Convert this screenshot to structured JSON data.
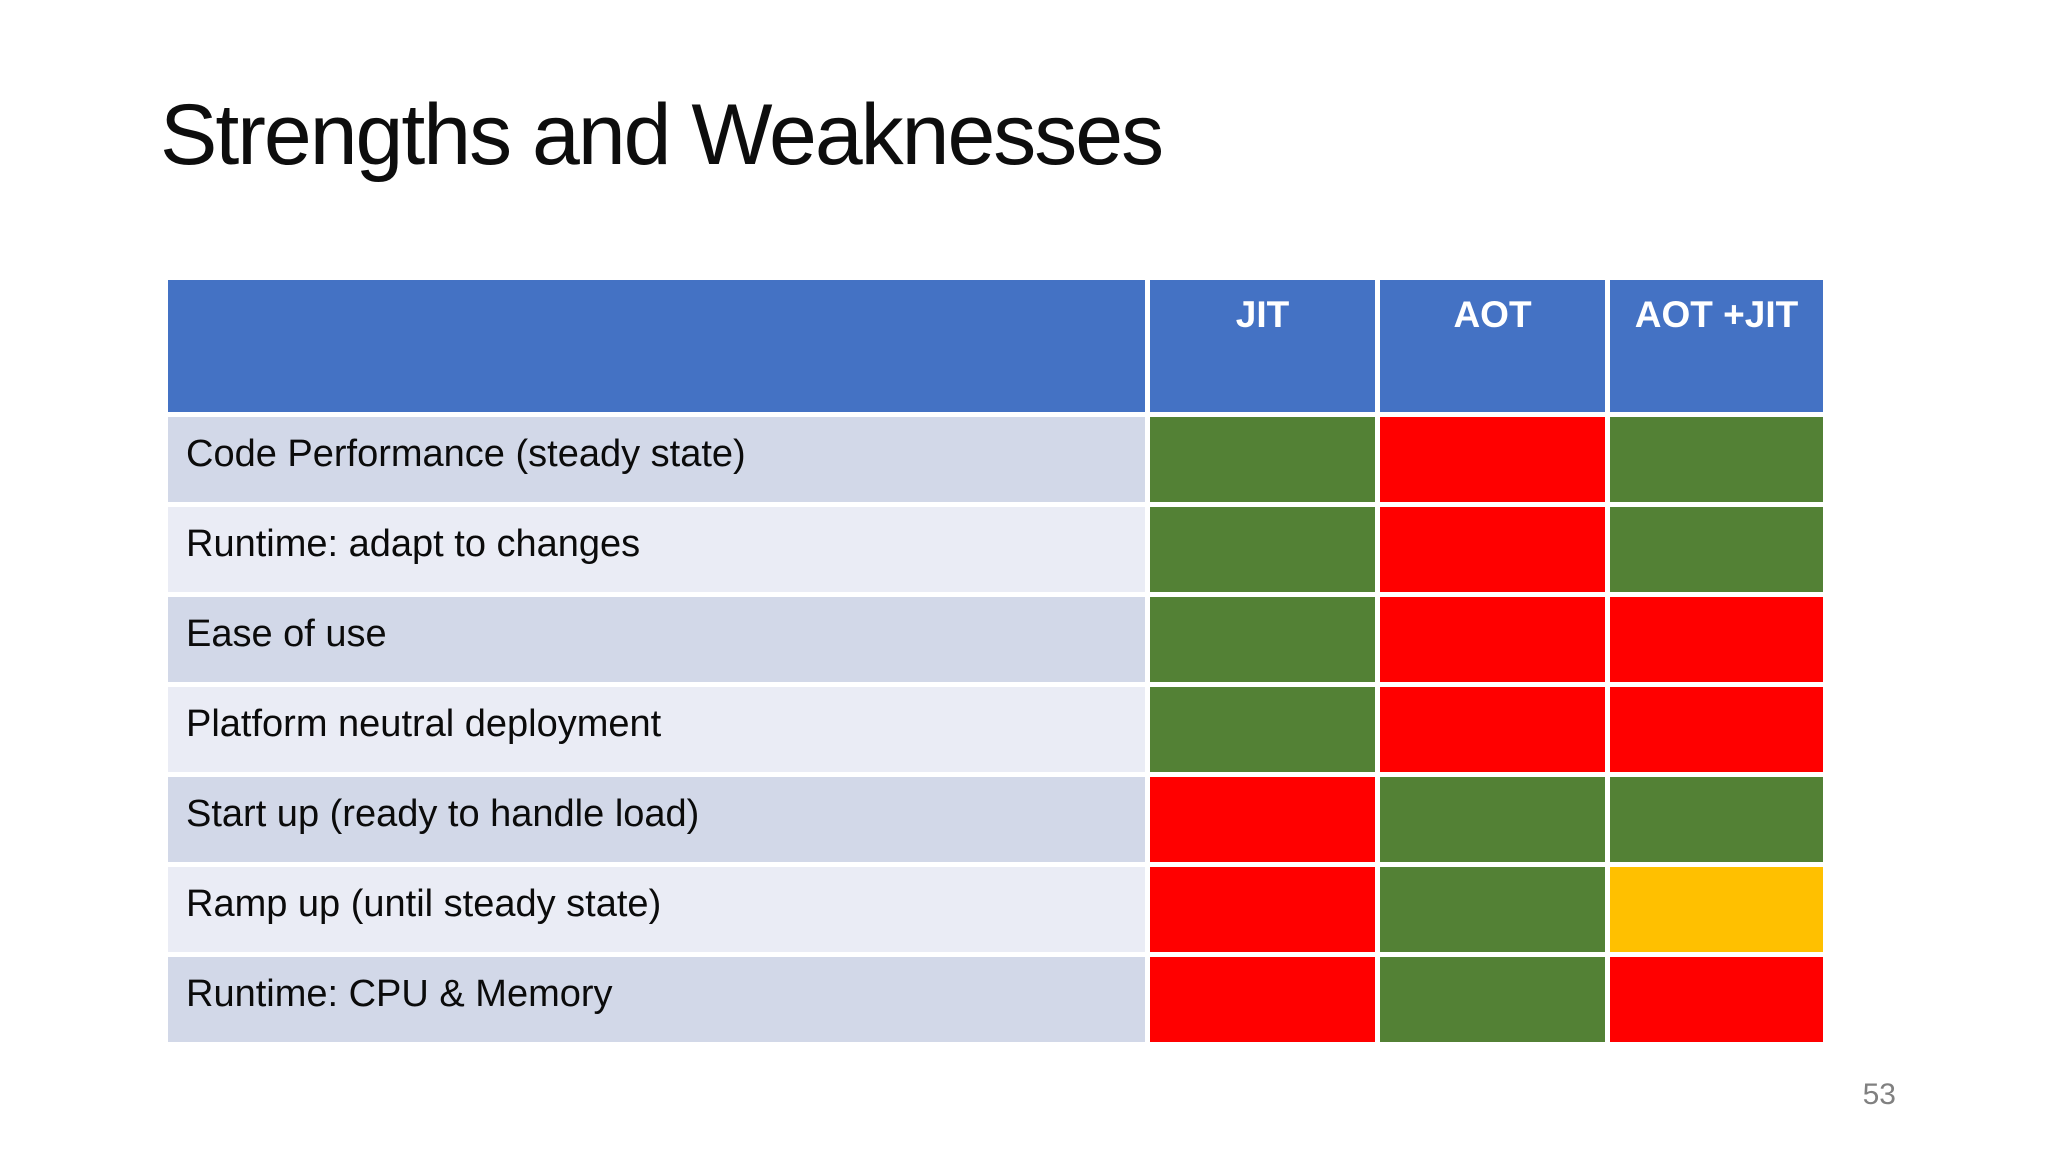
{
  "slide": {
    "title": "Strengths and Weaknesses",
    "page_number": "53"
  },
  "colors": {
    "header_bg": "#4472C4",
    "header_text": "#FFFFFF",
    "row_band_dark": "#D2D8E8",
    "row_band_light": "#EAECF5",
    "title_text": "#0D0D0D",
    "page_number_text": "#808080"
  },
  "table": {
    "columns": [
      "JIT",
      "AOT",
      "AOT +JIT"
    ],
    "rating_colors": {
      "strong": "#538135",
      "weak": "#FF0000",
      "medium": "#FFC000"
    },
    "rows": [
      {
        "label": "Code Performance (steady state)",
        "cells": [
          "strong",
          "weak",
          "strong"
        ]
      },
      {
        "label": "Runtime: adapt to changes",
        "cells": [
          "strong",
          "weak",
          "strong"
        ]
      },
      {
        "label": "Ease of use",
        "cells": [
          "strong",
          "weak",
          "weak"
        ]
      },
      {
        "label": "Platform neutral deployment",
        "cells": [
          "strong",
          "weak",
          "weak"
        ]
      },
      {
        "label": "Start up (ready to handle load)",
        "cells": [
          "weak",
          "strong",
          "strong"
        ]
      },
      {
        "label": "Ramp up (until steady state)",
        "cells": [
          "weak",
          "strong",
          "medium"
        ]
      },
      {
        "label": "Runtime: CPU & Memory",
        "cells": [
          "weak",
          "strong",
          "weak"
        ]
      }
    ]
  },
  "chart_data": {
    "type": "table",
    "title": "Strengths and Weaknesses",
    "columns": [
      "JIT",
      "AOT",
      "AOT +JIT"
    ],
    "rows": [
      "Code Performance (steady state)",
      "Runtime: adapt to changes",
      "Ease of use",
      "Platform neutral deployment",
      "Start up (ready to handle load)",
      "Ramp up (until steady state)",
      "Runtime: CPU & Memory"
    ],
    "ratings": [
      [
        "strong",
        "weak",
        "strong"
      ],
      [
        "strong",
        "weak",
        "strong"
      ],
      [
        "strong",
        "weak",
        "weak"
      ],
      [
        "strong",
        "weak",
        "weak"
      ],
      [
        "weak",
        "strong",
        "strong"
      ],
      [
        "weak",
        "strong",
        "medium"
      ],
      [
        "weak",
        "strong",
        "weak"
      ]
    ],
    "legend": {
      "strong": "green",
      "weak": "red",
      "medium": "gold"
    }
  }
}
